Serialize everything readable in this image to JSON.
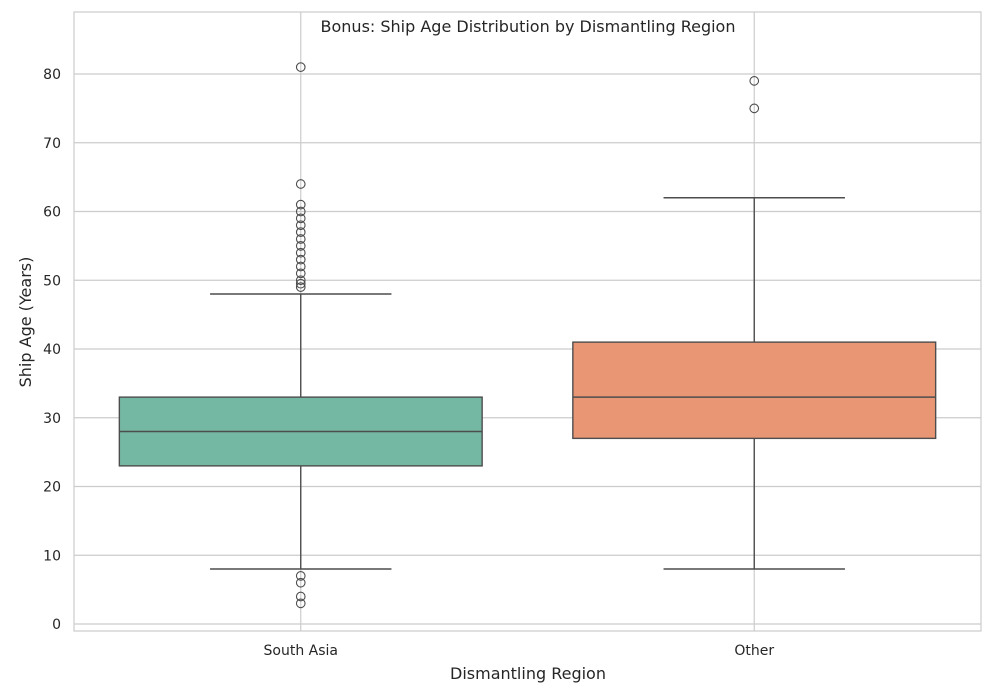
{
  "chart_data": {
    "type": "box",
    "title": "Bonus: Ship Age Distribution by Dismantling Region",
    "xlabel": "Dismantling Region",
    "ylabel": "Ship Age (Years)",
    "ylim": [
      -1,
      85
    ],
    "yticks": [
      0,
      10,
      20,
      30,
      40,
      50,
      60,
      70,
      80
    ],
    "grid": true,
    "categories": [
      "South Asia",
      "Other"
    ],
    "boxes": [
      {
        "category": "South Asia",
        "color": "#74b7a2",
        "whisker_low": 8,
        "q1": 23,
        "median": 28,
        "q3": 33,
        "whisker_high": 48,
        "outliers": [
          3,
          4,
          6,
          7,
          49,
          49.5,
          50,
          51,
          52,
          53,
          54,
          55,
          56,
          57,
          58,
          59,
          60,
          61,
          64,
          81
        ]
      },
      {
        "category": "Other",
        "color": "#e99675",
        "whisker_low": 8,
        "q1": 27,
        "median": 33,
        "q3": 41,
        "whisker_high": 62,
        "outliers": [
          75,
          79
        ]
      }
    ]
  }
}
